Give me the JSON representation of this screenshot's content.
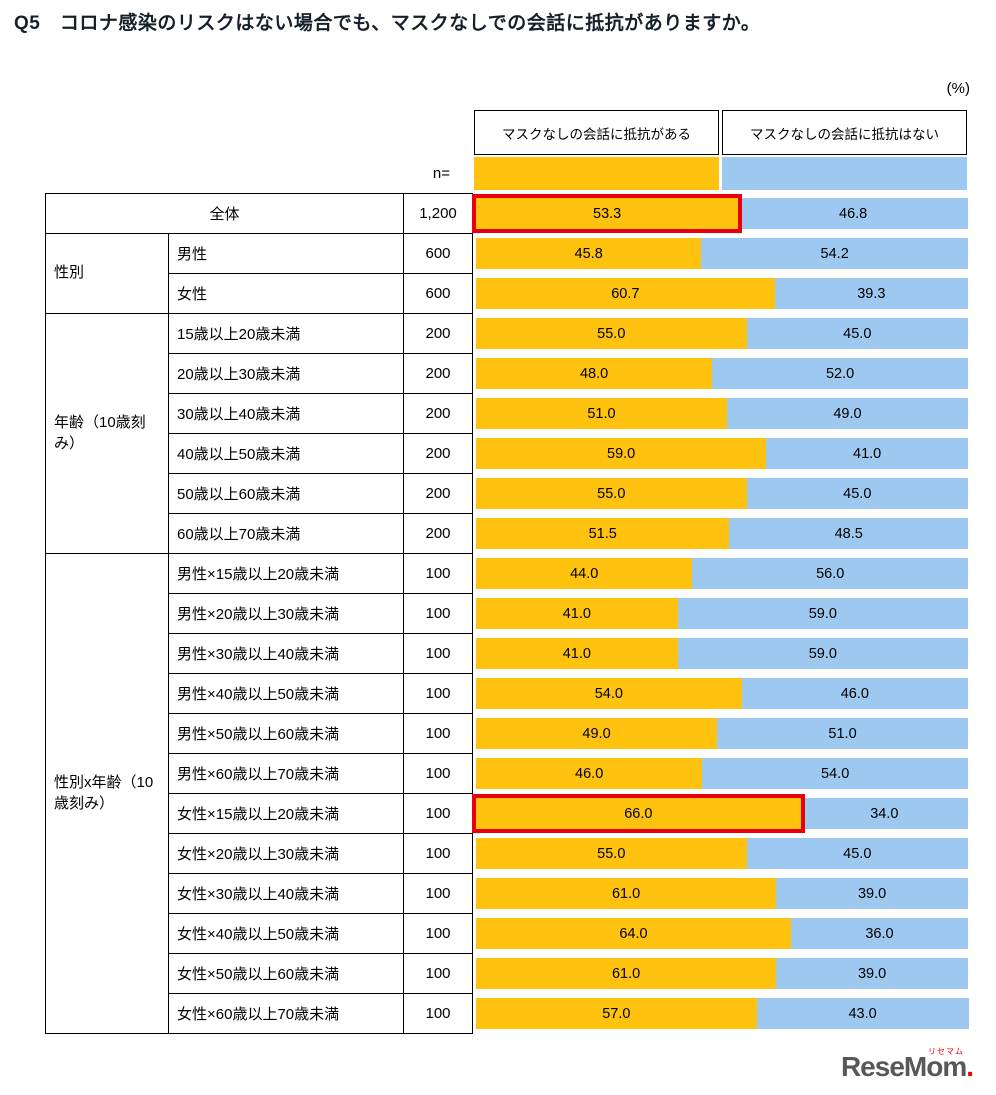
{
  "page": {
    "title": "Q5　コロナ感染のリスクはない場合でも、マスクなしでの会話に抵抗がありますか。",
    "unit_label": "(%)",
    "n_label": "n="
  },
  "colors": {
    "yes": "#FFC20E",
    "no": "#9DC9F0",
    "highlight": "#E8000B"
  },
  "chart_data": {
    "type": "bar",
    "stacked": true,
    "orientation": "horizontal",
    "xlim": [
      0,
      100
    ],
    "series_labels": [
      "マスクなしの会話に抵抗がある",
      "マスクなしの会話に抵抗はない"
    ],
    "groups": [
      {
        "label": "",
        "rows": [
          {
            "label": "全体",
            "merged": true,
            "n": "1,200",
            "yes": 53.3,
            "no": 46.8,
            "highlight": true
          }
        ]
      },
      {
        "label": "性別",
        "rows": [
          {
            "label": "男性",
            "n": "600",
            "yes": 45.8,
            "no": 54.2
          },
          {
            "label": "女性",
            "n": "600",
            "yes": 60.7,
            "no": 39.3
          }
        ]
      },
      {
        "label": "年齢（10歳刻み）",
        "rows": [
          {
            "label": "15歳以上20歳未満",
            "n": "200",
            "yes": 55.0,
            "no": 45.0
          },
          {
            "label": "20歳以上30歳未満",
            "n": "200",
            "yes": 48.0,
            "no": 52.0
          },
          {
            "label": "30歳以上40歳未満",
            "n": "200",
            "yes": 51.0,
            "no": 49.0
          },
          {
            "label": "40歳以上50歳未満",
            "n": "200",
            "yes": 59.0,
            "no": 41.0
          },
          {
            "label": "50歳以上60歳未満",
            "n": "200",
            "yes": 55.0,
            "no": 45.0
          },
          {
            "label": "60歳以上70歳未満",
            "n": "200",
            "yes": 51.5,
            "no": 48.5
          }
        ]
      },
      {
        "label": "性別x年齢（10歳刻み）",
        "rows": [
          {
            "label": "男性×15歳以上20歳未満",
            "n": "100",
            "yes": 44.0,
            "no": 56.0
          },
          {
            "label": "男性×20歳以上30歳未満",
            "n": "100",
            "yes": 41.0,
            "no": 59.0
          },
          {
            "label": "男性×30歳以上40歳未満",
            "n": "100",
            "yes": 41.0,
            "no": 59.0
          },
          {
            "label": "男性×40歳以上50歳未満",
            "n": "100",
            "yes": 54.0,
            "no": 46.0
          },
          {
            "label": "男性×50歳以上60歳未満",
            "n": "100",
            "yes": 49.0,
            "no": 51.0
          },
          {
            "label": "男性×60歳以上70歳未満",
            "n": "100",
            "yes": 46.0,
            "no": 54.0
          },
          {
            "label": "女性×15歳以上20歳未満",
            "n": "100",
            "yes": 66.0,
            "no": 34.0,
            "highlight": true
          },
          {
            "label": "女性×20歳以上30歳未満",
            "n": "100",
            "yes": 55.0,
            "no": 45.0
          },
          {
            "label": "女性×30歳以上40歳未満",
            "n": "100",
            "yes": 61.0,
            "no": 39.0
          },
          {
            "label": "女性×40歳以上50歳未満",
            "n": "100",
            "yes": 64.0,
            "no": 36.0
          },
          {
            "label": "女性×50歳以上60歳未満",
            "n": "100",
            "yes": 61.0,
            "no": 39.0
          },
          {
            "label": "女性×60歳以上70歳未満",
            "n": "100",
            "yes": 57.0,
            "no": 43.0
          }
        ]
      }
    ]
  },
  "logo": {
    "text": "ReseMom",
    "dot": ".",
    "ruby": "リセマム"
  }
}
